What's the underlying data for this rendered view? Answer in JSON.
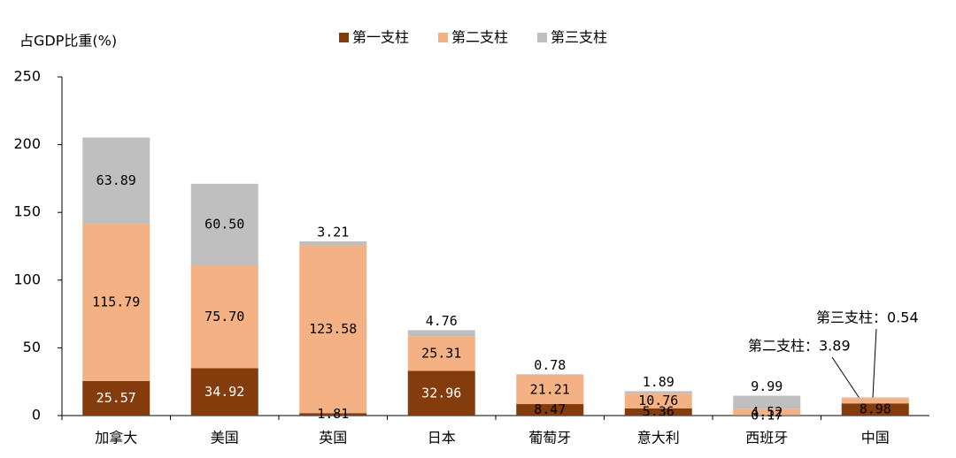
{
  "chart_data": {
    "type": "bar",
    "stacked": true,
    "y_label": "占GDP比重(%)",
    "categories": [
      "加拿大",
      "美国",
      "英国",
      "日本",
      "葡萄牙",
      "意大利",
      "西班牙",
      "中国"
    ],
    "series": [
      {
        "name": "第一支柱",
        "color": "#843c0c",
        "values": [
          25.57,
          34.92,
          1.81,
          32.96,
          8.47,
          5.36,
          0.17,
          8.98
        ],
        "value_labels": [
          "25.57",
          "34.92",
          "1.81",
          "32.96",
          "8.47",
          "5.36",
          "0.17",
          "8.98"
        ]
      },
      {
        "name": "第二支柱",
        "color": "#f4b183",
        "values": [
          115.79,
          75.7,
          123.58,
          25.31,
          21.21,
          10.76,
          4.52,
          3.89
        ],
        "value_labels": [
          "115.79",
          "75.70",
          "123.58",
          "25.31",
          "21.21",
          "10.76",
          "4.52",
          null
        ]
      },
      {
        "name": "第三支柱",
        "color": "#bfbfbf",
        "values": [
          63.89,
          60.5,
          3.21,
          4.76,
          0.78,
          1.89,
          9.99,
          0.54
        ],
        "value_labels": [
          "63.89",
          "60.50",
          "3.21",
          "4.76",
          "0.78",
          "1.89",
          "9.99",
          null
        ]
      }
    ],
    "annotations": [
      "第三支柱：0.54",
      "第二支柱：3.89"
    ],
    "ylim": [
      0,
      250
    ],
    "yticks": [
      0,
      50,
      100,
      150,
      200,
      250
    ],
    "grid": false,
    "legend": "top"
  }
}
